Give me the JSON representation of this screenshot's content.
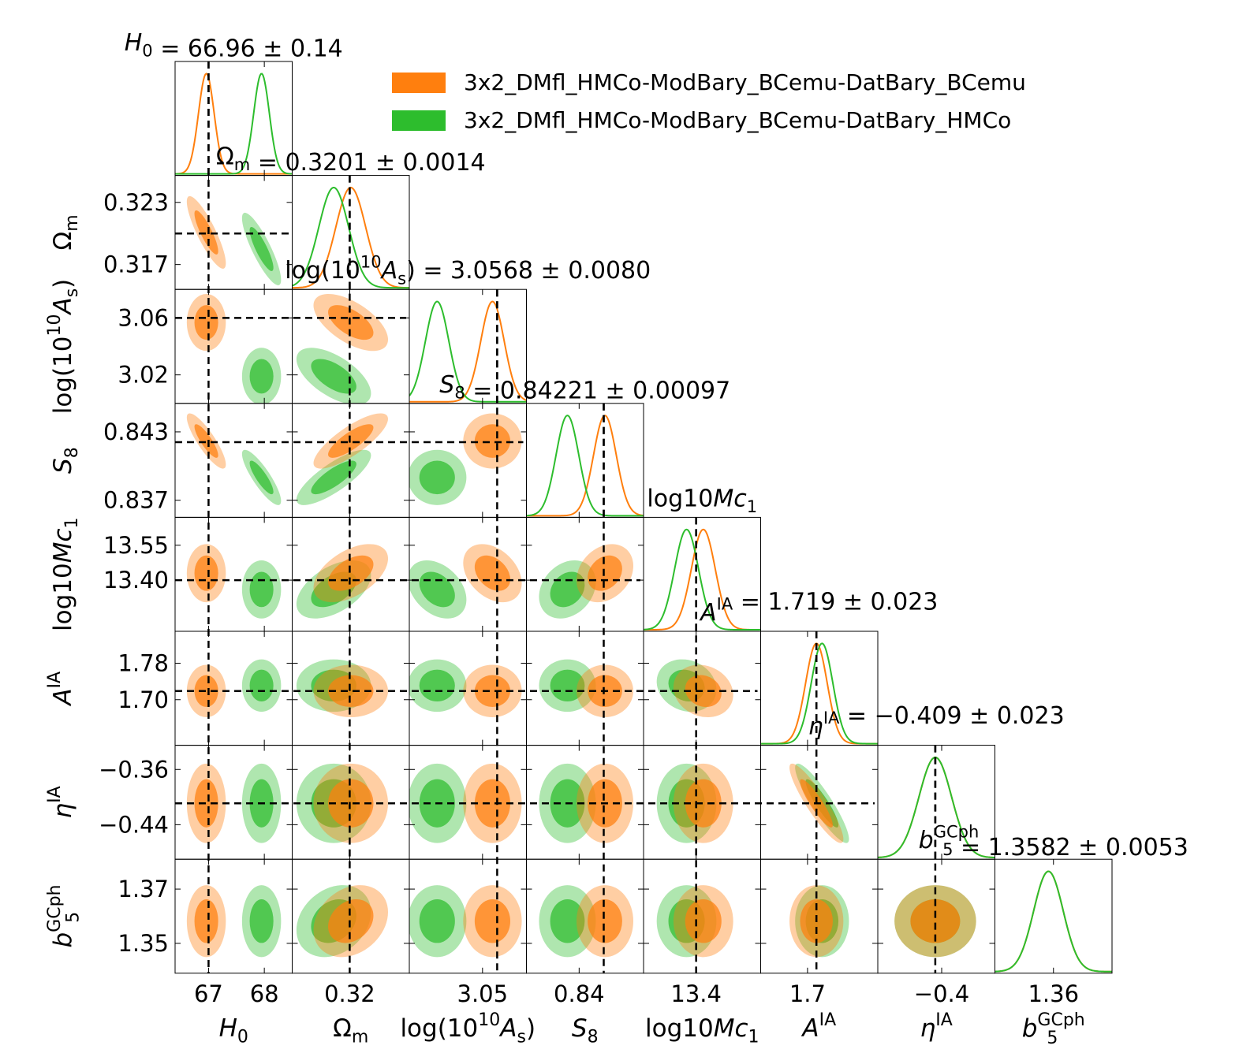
{
  "chart_data": {
    "type": "corner",
    "legend_position": "top-right",
    "series": [
      {
        "name": "3x2_DMfl_HMCo-ModBary_BCemu-DatBary_BCemu",
        "color": "#ff7f0e"
      },
      {
        "name": "3x2_DMfl_HMCo-ModBary_BCemu-DatBary_HMCo",
        "color": "#2dbd2d"
      }
    ],
    "params": [
      {
        "key": "H0",
        "sym": "H",
        "sub": "0",
        "italic": true,
        "summary": "= 66.96 ± 0.14",
        "xmin": 66.4,
        "xmax": 68.5,
        "ticks": [
          67,
          68
        ],
        "tick_labels": [
          "67",
          "68"
        ],
        "fiducial": 67.0,
        "means": [
          66.96,
          67.95
        ],
        "sigmas": [
          0.14,
          0.14
        ],
        "summary_mean": 66.96
      },
      {
        "key": "Om",
        "sym": "Ω",
        "sub": "m",
        "italic": false,
        "summary": "= 0.3201 ± 0.0014",
        "xmin": 0.3146,
        "xmax": 0.3256,
        "ticks": [
          0.317,
          0.323
        ],
        "tick_labels": [
          "0.317",
          "0.323"
        ],
        "xticks": [
          0.32
        ],
        "xtick_labels": [
          "0.32"
        ],
        "fiducial": 0.32,
        "means": [
          0.3201,
          0.3185
        ],
        "sigmas": [
          0.0014,
          0.0014
        ],
        "summary_mean": 0.3201
      },
      {
        "key": "As",
        "pre": "log(10",
        "sup": "10",
        "sym": "A",
        "sub": "s",
        "post": ")",
        "italic": true,
        "summary": "= 3.0568 ± 0.0080",
        "xmin": 3.0,
        "xmax": 3.08,
        "ticks": [
          3.02,
          3.06
        ],
        "tick_labels": [
          "3.02",
          "3.06"
        ],
        "xticks": [
          3.05
        ],
        "xtick_labels": [
          "3.05"
        ],
        "fiducial": 3.06,
        "means": [
          3.0568,
          3.019
        ],
        "sigmas": [
          0.008,
          0.008
        ],
        "summary_mean": 3.0568
      },
      {
        "key": "S8",
        "sym": "S",
        "sub": "8",
        "italic": true,
        "summary": "= 0.84221 ± 0.00097",
        "xmin": 0.8355,
        "xmax": 0.8455,
        "ticks": [
          0.837,
          0.843
        ],
        "tick_labels": [
          "0.837",
          "0.843"
        ],
        "xticks": [
          0.84
        ],
        "xtick_labels": [
          "0.84"
        ],
        "fiducial": 0.8421,
        "means": [
          0.8422,
          0.839
        ],
        "sigmas": [
          0.00097,
          0.00097
        ],
        "summary_mean": 0.8422
      },
      {
        "key": "Mc1",
        "pre": "log10",
        "sym": "Mc",
        "sub": "1",
        "italic": true,
        "summary": "",
        "xmin": 13.18,
        "xmax": 13.67,
        "ticks": [
          13.4,
          13.55
        ],
        "tick_labels": [
          "13.40",
          "13.55"
        ],
        "xticks": [
          13.4
        ],
        "xtick_labels": [
          "13.4"
        ],
        "fiducial": 13.4,
        "means": [
          13.43,
          13.36
        ],
        "sigmas": [
          0.05,
          0.05
        ],
        "summary_mean": 13.4
      },
      {
        "key": "AIA",
        "sym": "A",
        "sup": "IA",
        "italic": true,
        "summary": "= 1.719 ± 0.023",
        "xmin": 1.6,
        "xmax": 1.85,
        "ticks": [
          1.7,
          1.78
        ],
        "tick_labels": [
          "1.70",
          "1.78"
        ],
        "xticks": [
          1.7
        ],
        "xtick_labels": [
          "1.7"
        ],
        "fiducial": 1.719,
        "means": [
          1.719,
          1.731
        ],
        "sigmas": [
          0.023,
          0.023
        ],
        "summary_mean": 1.719
      },
      {
        "key": "etaIA",
        "sym": "η",
        "sup": "IA",
        "italic": true,
        "summary": "= −0.409 ± 0.023",
        "xmin": -0.49,
        "xmax": -0.325,
        "ticks": [
          -0.44,
          -0.36
        ],
        "tick_labels": [
          "−0.44",
          "−0.36"
        ],
        "xticks": [
          -0.4
        ],
        "xtick_labels": [
          "−0.4"
        ],
        "fiducial": -0.409,
        "means": [
          -0.409,
          -0.409
        ],
        "sigmas": [
          0.023,
          0.023
        ],
        "summary_mean": -0.409
      },
      {
        "key": "b5",
        "sym": "b",
        "sub": "5",
        "sup": "GCph",
        "italic": true,
        "summary": "= 1.3582 ± 0.0053",
        "xmin": 1.339,
        "xmax": 1.381,
        "ticks": [
          1.35,
          1.37
        ],
        "tick_labels": [
          "1.35",
          "1.37"
        ],
        "xticks": [
          1.36
        ],
        "xtick_labels": [
          "1.36"
        ],
        "fiducial": 1.3582,
        "means": [
          1.3582,
          1.3582
        ],
        "sigmas": [
          0.0053,
          0.0053
        ],
        "summary_mean": 1.3582
      }
    ],
    "correlations": {
      "0_1": -0.85,
      "0_2": 0.0,
      "0_3": -0.85,
      "0_4": 0.0,
      "0_5": 0.0,
      "0_6": 0.0,
      "0_7": 0.0,
      "1_2": -0.6,
      "1_3": 0.8,
      "1_4": 0.5,
      "1_5": 0.0,
      "1_6": 0.0,
      "1_7": 0.25,
      "2_3": 0.0,
      "2_4": -0.35,
      "2_5": 0.0,
      "2_6": 0.0,
      "2_7": 0.0,
      "3_4": 0.25,
      "3_5": 0.0,
      "3_6": 0.0,
      "3_7": 0.0,
      "4_5": -0.15,
      "4_6": 0.0,
      "4_7": 0.0,
      "5_6": -0.9,
      "5_7": 0.0,
      "6_7": 0.0
    }
  }
}
